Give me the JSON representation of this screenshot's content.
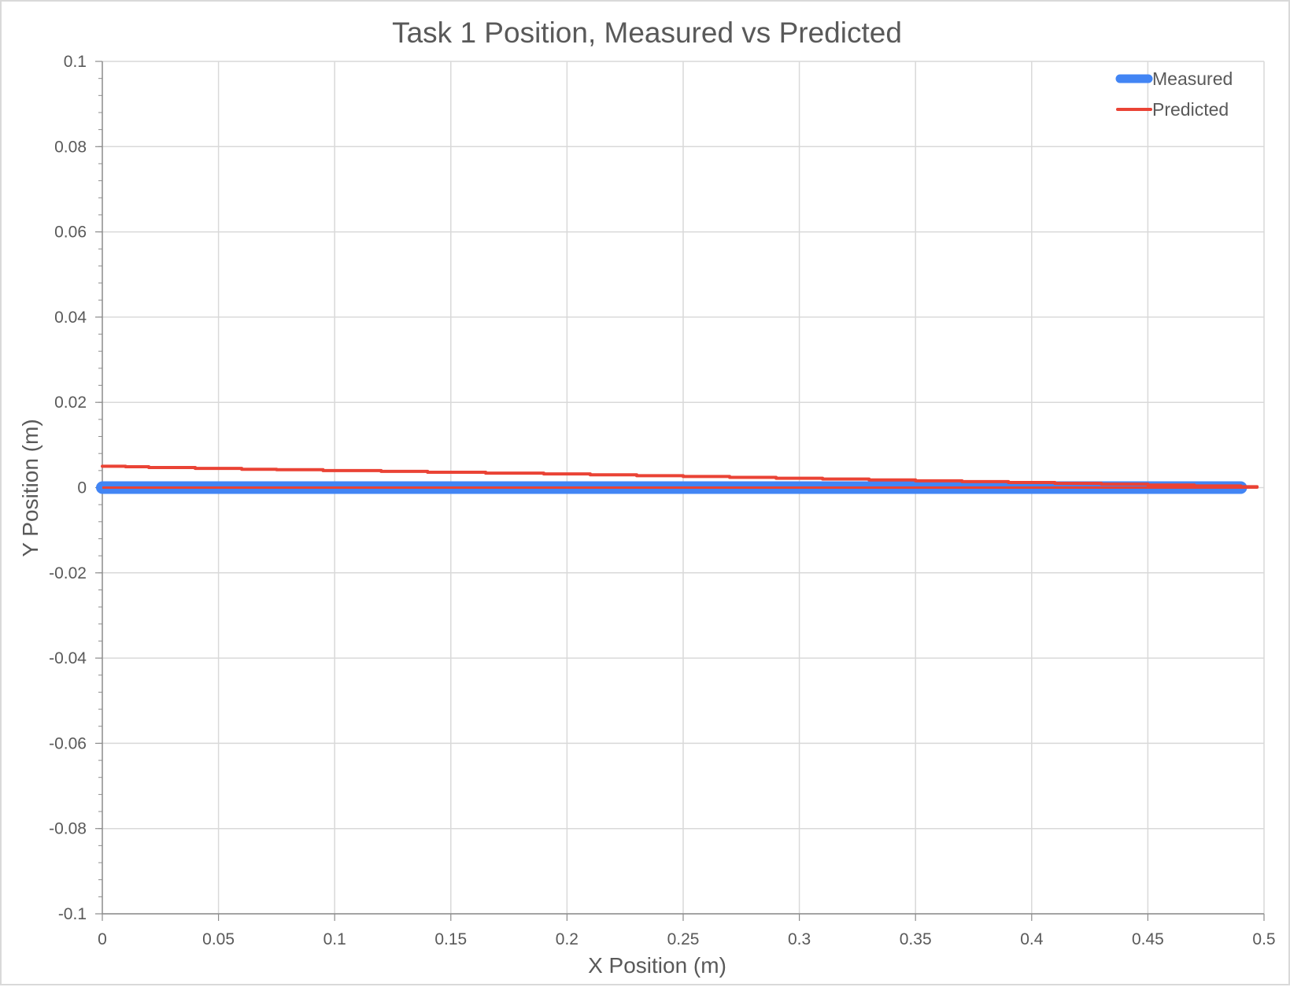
{
  "chart_data": {
    "type": "line",
    "title": "Task 1 Position, Measured vs Predicted",
    "xlabel": "X Position (m)",
    "ylabel": "Y Position (m)",
    "xlim": [
      0,
      0.5
    ],
    "ylim": [
      -0.1,
      0.1
    ],
    "x_ticks": [
      "0",
      "0.05",
      "0.1",
      "0.15",
      "0.2",
      "0.25",
      "0.3",
      "0.35",
      "0.4",
      "0.45",
      "0.5"
    ],
    "y_ticks": [
      "0.1",
      "0.08",
      "0.06",
      "0.04",
      "0.02",
      "0",
      "-0.02",
      "-0.04",
      "-0.06",
      "-0.08",
      "-0.1"
    ],
    "grid": true,
    "legend_position": "top-right",
    "series": [
      {
        "name": "Measured",
        "color": "#4285f4",
        "x": [
          0,
          0.49
        ],
        "y": [
          0,
          0
        ]
      },
      {
        "name": "Predicted",
        "color": "#ea4335",
        "x": [
          0,
          0.01,
          0.02,
          0.04,
          0.06,
          0.075,
          0.095,
          0.12,
          0.14,
          0.165,
          0.19,
          0.21,
          0.23,
          0.25,
          0.27,
          0.29,
          0.31,
          0.33,
          0.35,
          0.37,
          0.39,
          0.41,
          0.43,
          0.45,
          0.47,
          0.49,
          0.497
        ],
        "y": [
          0.005,
          0.0049,
          0.0047,
          0.0045,
          0.0043,
          0.0042,
          0.004,
          0.0038,
          0.0036,
          0.0034,
          0.0032,
          0.003,
          0.0028,
          0.0026,
          0.0024,
          0.0022,
          0.002,
          0.0018,
          0.0016,
          0.0014,
          0.0012,
          0.001,
          0.0008,
          0.0006,
          0.0004,
          0.0002,
          0.0001
        ]
      }
    ]
  }
}
